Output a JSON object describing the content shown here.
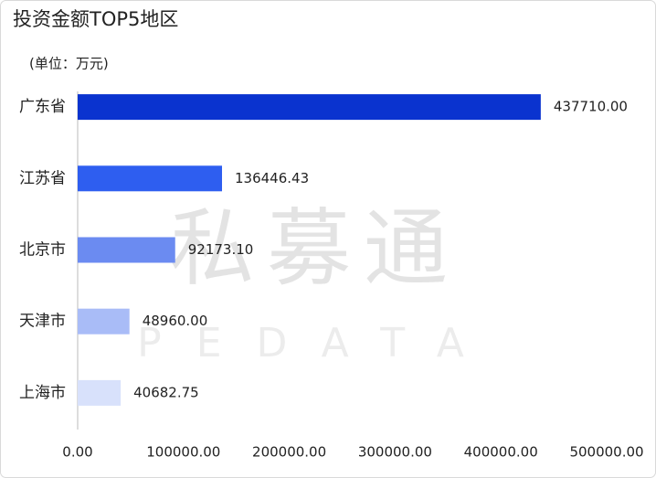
{
  "chart_data": {
    "type": "barh",
    "title": "投资金额TOP5地区",
    "subtitle": "(单位：万元)",
    "categories": [
      "广东省",
      "江苏省",
      "北京市",
      "天津市",
      "上海市"
    ],
    "values": [
      437710,
      136446.43,
      92173.1,
      48960,
      40682.75
    ],
    "value_labels": [
      "437710.00",
      "136446.43",
      "92173.10",
      "48960.00",
      "40682.75"
    ],
    "colors": [
      "#0a33cf",
      "#2e5ef0",
      "#6b8bf1",
      "#a9bcf7",
      "#d8e1fb"
    ],
    "xlim": [
      0,
      500000
    ],
    "xticks": [
      {
        "value": 0,
        "label": "0.00"
      },
      {
        "value": 100000,
        "label": "100000.00"
      },
      {
        "value": 200000,
        "label": "200000.00"
      },
      {
        "value": 300000,
        "label": "300000.00"
      },
      {
        "value": 400000,
        "label": "400000.00"
      },
      {
        "value": 500000,
        "label": "500000.00"
      }
    ],
    "watermark": {
      "text": "私募通",
      "subtext": "PEDATA"
    }
  }
}
